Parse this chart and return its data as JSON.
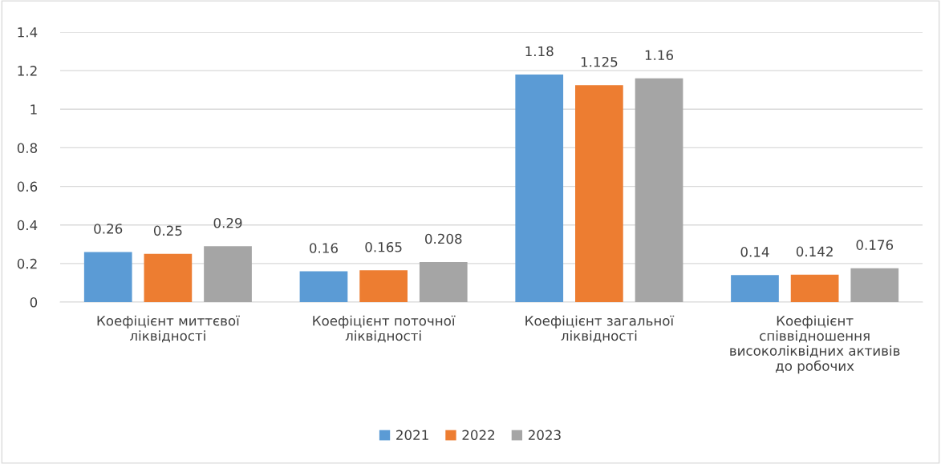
{
  "chart_data": {
    "type": "bar",
    "categories": [
      "Коефіцієнт миттєвої\nліквідності",
      "Коефіцієнт поточної\nліквідності",
      "Коефіцієнт загальної\nліквідності",
      "Коефіцієнт\nспіввідношення\nвисоколіквідних активів\nдо робочих"
    ],
    "series": [
      {
        "name": "2021",
        "color": "#5b9bd5",
        "values": [
          0.26,
          0.16,
          1.18,
          0.14
        ]
      },
      {
        "name": "2022",
        "color": "#ed7d31",
        "values": [
          0.25,
          0.165,
          1.125,
          0.142
        ]
      },
      {
        "name": "2023",
        "color": "#a5a5a5",
        "values": [
          0.29,
          0.208,
          1.16,
          0.176
        ]
      }
    ],
    "ylim": [
      0,
      1.4
    ],
    "yticks": [
      0,
      0.2,
      0.4,
      0.6,
      0.8,
      1,
      1.2,
      1.4
    ],
    "grid": "y",
    "legend": "bottom",
    "data_labels": true
  }
}
